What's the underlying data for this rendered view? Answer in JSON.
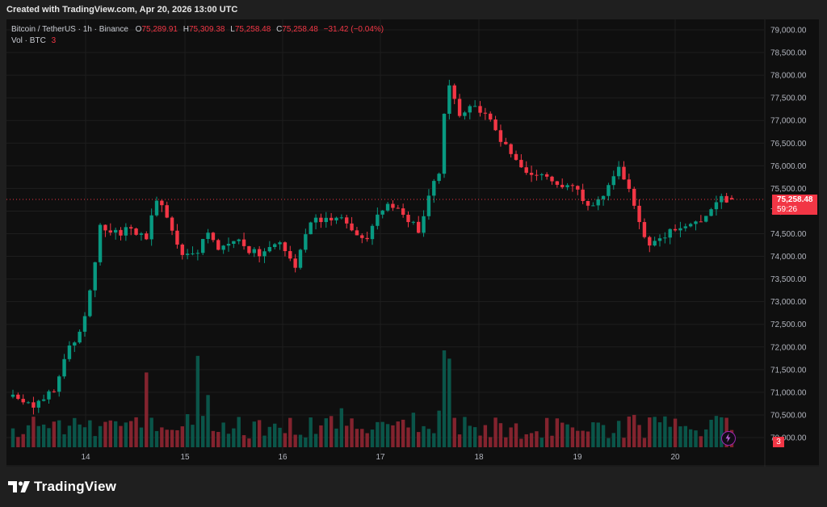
{
  "header": {
    "created_text": "Created with TradingView.com, Apr 20, 2026 13:00 UTC"
  },
  "legend": {
    "symbol": "Bitcoin / TetherUS · 1h · Binance",
    "o_label": "O",
    "o_value": "75,289.91",
    "h_label": "H",
    "h_value": "75,309.38",
    "l_label": "L",
    "l_value": "75,258.48",
    "c_label": "C",
    "c_value": "75,258.48",
    "change": "−31.42 (−0.04%)",
    "vol_label": "Vol · BTC",
    "vol_value": "3"
  },
  "price_tag": {
    "price": "75,258.48",
    "countdown": "59:26"
  },
  "volume_tag": "3",
  "brand": {
    "name": "TradingView"
  },
  "colors": {
    "up": "#089981",
    "down": "#f23645",
    "background": "#0f0f0f",
    "grid": "#1e1e1e",
    "text": "#b2b5be"
  },
  "chart_data": {
    "type": "candlestick",
    "title": "Bitcoin / TetherUS · 1h · Binance",
    "ylim": [
      69800,
      79200
    ],
    "y_ticks": [
      "79,000.00",
      "78,500.00",
      "78,000.00",
      "77,500.00",
      "77,000.00",
      "76,500.00",
      "76,000.00",
      "75,500.00",
      "75,000.00",
      "74,500.00",
      "74,000.00",
      "73,500.00",
      "73,000.00",
      "72,500.00",
      "72,000.00",
      "71,500.00",
      "71,000.00",
      "70,500.00",
      "70,000.00"
    ],
    "x_ticks": [
      "14",
      "15",
      "16",
      "17",
      "18",
      "19",
      "20"
    ],
    "current_price": 75258.48,
    "close_path": [
      [
        0,
        70900
      ],
      [
        4,
        70700
      ],
      [
        8,
        71100
      ],
      [
        11,
        72000
      ],
      [
        13,
        72300
      ],
      [
        15,
        73200
      ],
      [
        17,
        74700
      ],
      [
        20,
        74500
      ],
      [
        23,
        74600
      ],
      [
        26,
        74400
      ],
      [
        28,
        75300
      ],
      [
        30,
        74800
      ],
      [
        33,
        74000
      ],
      [
        36,
        74100
      ],
      [
        38,
        74600
      ],
      [
        40,
        74100
      ],
      [
        44,
        74300
      ],
      [
        48,
        74000
      ],
      [
        52,
        74300
      ],
      [
        55,
        73800
      ],
      [
        58,
        74800
      ],
      [
        61,
        74800
      ],
      [
        64,
        74800
      ],
      [
        66,
        74500
      ],
      [
        69,
        74300
      ],
      [
        71,
        74900
      ],
      [
        73,
        75200
      ],
      [
        75,
        75100
      ],
      [
        77,
        74800
      ],
      [
        79,
        74600
      ],
      [
        81,
        75300
      ],
      [
        83,
        75900
      ],
      [
        84,
        77200
      ],
      [
        85,
        77800
      ],
      [
        87,
        77100
      ],
      [
        89,
        77300
      ],
      [
        92,
        77200
      ],
      [
        95,
        76600
      ],
      [
        97,
        76200
      ],
      [
        100,
        75800
      ],
      [
        103,
        75800
      ],
      [
        106,
        75600
      ],
      [
        109,
        75600
      ],
      [
        112,
        75100
      ],
      [
        115,
        75300
      ],
      [
        118,
        75900
      ],
      [
        120,
        75500
      ],
      [
        122,
        74700
      ],
      [
        124,
        74300
      ],
      [
        127,
        74500
      ],
      [
        130,
        74600
      ],
      [
        133,
        74700
      ],
      [
        136,
        75100
      ],
      [
        138,
        75300
      ],
      [
        140,
        75258
      ]
    ],
    "volume_spikes": [
      [
        26,
        10
      ],
      [
        36,
        12
      ],
      [
        84,
        16
      ],
      [
        85,
        12
      ],
      [
        38,
        7
      ],
      [
        83,
        5
      ],
      [
        64,
        5
      ],
      [
        98,
        3
      ],
      [
        126,
        3
      ]
    ],
    "candle_count": 141,
    "seed": 7
  }
}
